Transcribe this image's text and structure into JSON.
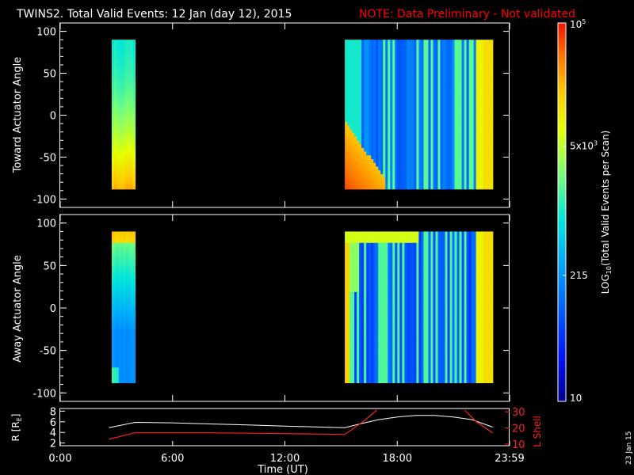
{
  "title": {
    "main": "TWINS2. Total Valid Events: 12 Jan (day  12), 2015",
    "note": "NOTE: Data Preliminary - Not validated",
    "note_color": "#ff0000"
  },
  "stamp": "23 Jan 15",
  "colors": {
    "axes": "#ffffff",
    "background": "#000000",
    "lshell": "#ff2020",
    "radius": "#ffffff"
  },
  "chart_data": [
    {
      "type": "heatmap",
      "panel": "toward",
      "ylabel": "Toward Actuator Angle",
      "ylim": [
        -110,
        110
      ],
      "yticks": [
        "100",
        "50",
        "0",
        "-50",
        "-100"
      ],
      "ytick_values": [
        100,
        50,
        0,
        -50,
        -100
      ],
      "xlim_hours": [
        0,
        24
      ],
      "data_y_range": [
        -88,
        90
      ],
      "segments": [
        {
          "start_hour": 2.75,
          "end_hour": 4.0,
          "pattern": "toward_early"
        },
        {
          "start_hour": 15.2,
          "end_hour": 23.1,
          "pattern": "toward_late"
        }
      ]
    },
    {
      "type": "heatmap",
      "panel": "away",
      "ylabel": "Away Actuator Angle",
      "ylim": [
        -110,
        110
      ],
      "yticks": [
        "100",
        "50",
        "0",
        "-50",
        "-100"
      ],
      "ytick_values": [
        100,
        50,
        0,
        -50,
        -100
      ],
      "xlim_hours": [
        0,
        24
      ],
      "data_y_range": [
        -88,
        90
      ],
      "segments": [
        {
          "start_hour": 2.75,
          "end_hour": 4.0,
          "pattern": "away_early"
        },
        {
          "start_hour": 15.2,
          "end_hour": 23.1,
          "pattern": "away_late"
        }
      ]
    },
    {
      "type": "line",
      "panel": "orbit",
      "xlabel": "Time (UT)",
      "xticks": [
        "0:00",
        "6:00",
        "12:00",
        "18:00",
        "23:59"
      ],
      "xtick_hours": [
        0,
        6,
        12,
        18,
        24
      ],
      "left_axis": {
        "label": "R [R",
        "label_sub": "E",
        "label_end": "]",
        "ylim": [
          1.5,
          8.5
        ],
        "ticks": [
          "8",
          "6",
          "4",
          "2"
        ],
        "tick_values": [
          8,
          6,
          4,
          2
        ]
      },
      "right_axis": {
        "label": "L Shell",
        "ylim": [
          10,
          30
        ],
        "ticks": [
          "30",
          "20",
          "10"
        ],
        "tick_values": [
          30,
          20,
          10
        ]
      },
      "series": [
        {
          "axis": "left",
          "x": [
            2.6,
            4.0,
            6,
            8,
            10,
            12,
            14,
            15.2,
            16,
            17,
            18,
            19,
            20,
            21,
            22,
            23.1
          ],
          "values": [
            4.9,
            5.9,
            5.8,
            5.6,
            5.4,
            5.2,
            5.0,
            4.9,
            5.6,
            6.4,
            6.9,
            7.2,
            7.2,
            6.9,
            6.4,
            5.0
          ]
        },
        {
          "axis": "right",
          "segments": [
            {
              "x": [
                2.6,
                4.0,
                8,
                12,
                15.2,
                16.2,
                16.9
              ],
              "values": [
                13,
                17,
                17,
                16.5,
                16,
                24,
                31
              ]
            },
            {
              "x": [
                21.6,
                22.2,
                23.1
              ],
              "values": [
                31,
                24,
                17
              ]
            }
          ]
        }
      ]
    }
  ],
  "colorbar": {
    "label": "LOG",
    "label_sub": "10",
    "label_rest": "(Total Valid Events per Scan)",
    "range": [
      10,
      100000
    ],
    "ticks": [
      {
        "text": "10",
        "value": 10
      },
      {
        "text": "215",
        "value": 215
      },
      {
        "text": "5x10",
        "sup": "3",
        "value": 5000
      },
      {
        "text": "10",
        "sup": "5",
        "value": 100000
      }
    ]
  }
}
